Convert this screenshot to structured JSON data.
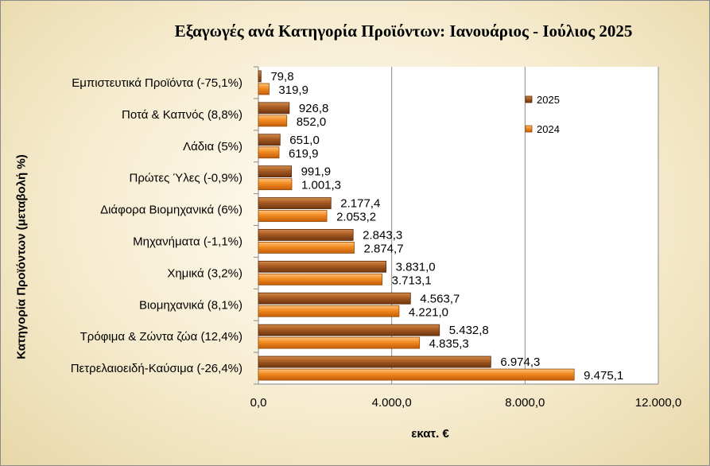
{
  "chart_data": {
    "type": "bar",
    "orientation": "horizontal",
    "title": "Εξαγωγές ανά Κατηγορία Προϊόντων:  Ιανουάριος - Ιούλιος 2025",
    "xlabel": "εκατ. €",
    "ylabel": "Κατηγορία Προϊόντων (μεταβολή %)",
    "xlim": [
      0,
      12000
    ],
    "xticks": [
      "0,0",
      "4.000,0",
      "8.000,0",
      "12.000,0"
    ],
    "xtick_values": [
      0,
      4000,
      8000,
      12000
    ],
    "grid": "vertical",
    "legend_position": "right",
    "categories": [
      "Εμπιστευτικά Προϊόντα (-75,1%)",
      "Ποτά & Καπνός (8,8%)",
      "Λάδια (5%)",
      "Πρώτες Ύλες (-0,9%)",
      "Διάφορα Βιομηχανικά (6%)",
      "Μηχανήματα (-1,1%)",
      "Χημικά (3,2%)",
      "Βιομηχανικά (8,1%)",
      "Τρόφιμα & Ζώντα ζώα (12,4%)",
      "Πετρελαιοειδή-Καύσιμα (-26,4%)"
    ],
    "series": [
      {
        "name": "2025",
        "color": "#8b4513",
        "values": [
          79.8,
          926.8,
          651.0,
          991.9,
          2177.4,
          2843.3,
          3831.0,
          4563.7,
          5432.8,
          6974.3
        ],
        "labels": [
          "79,8",
          "926,8",
          "651,0",
          "991,9",
          "2.177,4",
          "2.843,3",
          "3.831,0",
          "4.563,7",
          "5.432,8",
          "6.974,3"
        ]
      },
      {
        "name": "2024",
        "color": "#f08a1c",
        "values": [
          319.9,
          852.0,
          619.9,
          1001.3,
          2053.2,
          2874.7,
          3713.1,
          4221.0,
          4835.3,
          9475.1
        ],
        "labels": [
          "319,9",
          "852,0",
          "619,9",
          "1.001,3",
          "2.053,2",
          "2.874,7",
          "3.713,1",
          "4.221,0",
          "4.835,3",
          "9.475,1"
        ]
      }
    ]
  }
}
